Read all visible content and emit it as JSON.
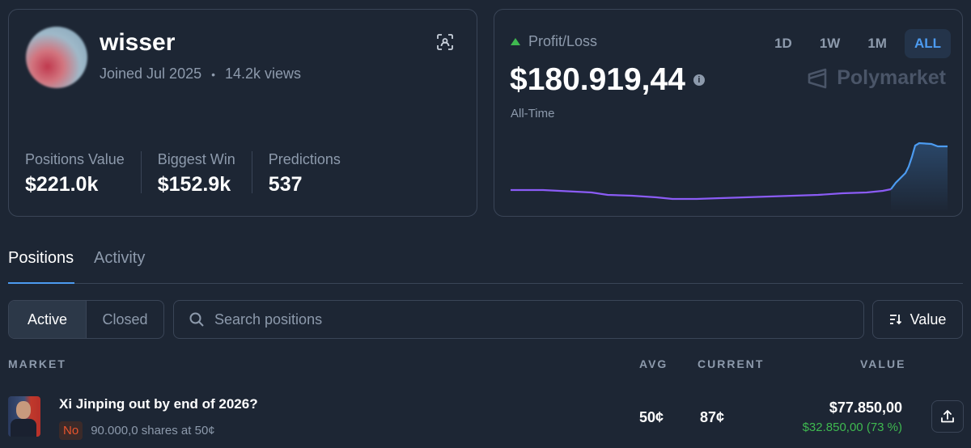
{
  "profile": {
    "username": "wisser",
    "joined": "Joined Jul 2025",
    "views": "14.2k views",
    "stats": [
      {
        "label": "Positions Value",
        "value": "$221.0k"
      },
      {
        "label": "Biggest Win",
        "value": "$152.9k"
      },
      {
        "label": "Predictions",
        "value": "537"
      }
    ]
  },
  "pnl": {
    "title": "Profit/Loss",
    "value": "$180.919,44",
    "period": "All-Time",
    "brand": "Polymarket",
    "ranges": [
      "1D",
      "1W",
      "1M",
      "ALL"
    ],
    "active_range": "ALL",
    "colors": {
      "line_early": "#8b5cf6",
      "line_late": "#4c9bf0",
      "up": "#3fb950"
    }
  },
  "tabs": {
    "positions": "Positions",
    "activity": "Activity",
    "active": "Positions"
  },
  "filters": {
    "active": "Active",
    "closed": "Closed",
    "search_placeholder": "Search positions",
    "sort_label": "Value"
  },
  "table": {
    "headers": {
      "market": "MARKET",
      "avg": "AVG",
      "current": "CURRENT",
      "value": "VALUE"
    },
    "rows": [
      {
        "title": "Xi Jinping out by end of 2026?",
        "outcome": "No",
        "shares": "90.000,0 shares at 50¢",
        "avg": "50¢",
        "current": "87¢",
        "value": "$77.850,00",
        "pnl": "$32.850,00 (73 %)"
      }
    ]
  }
}
